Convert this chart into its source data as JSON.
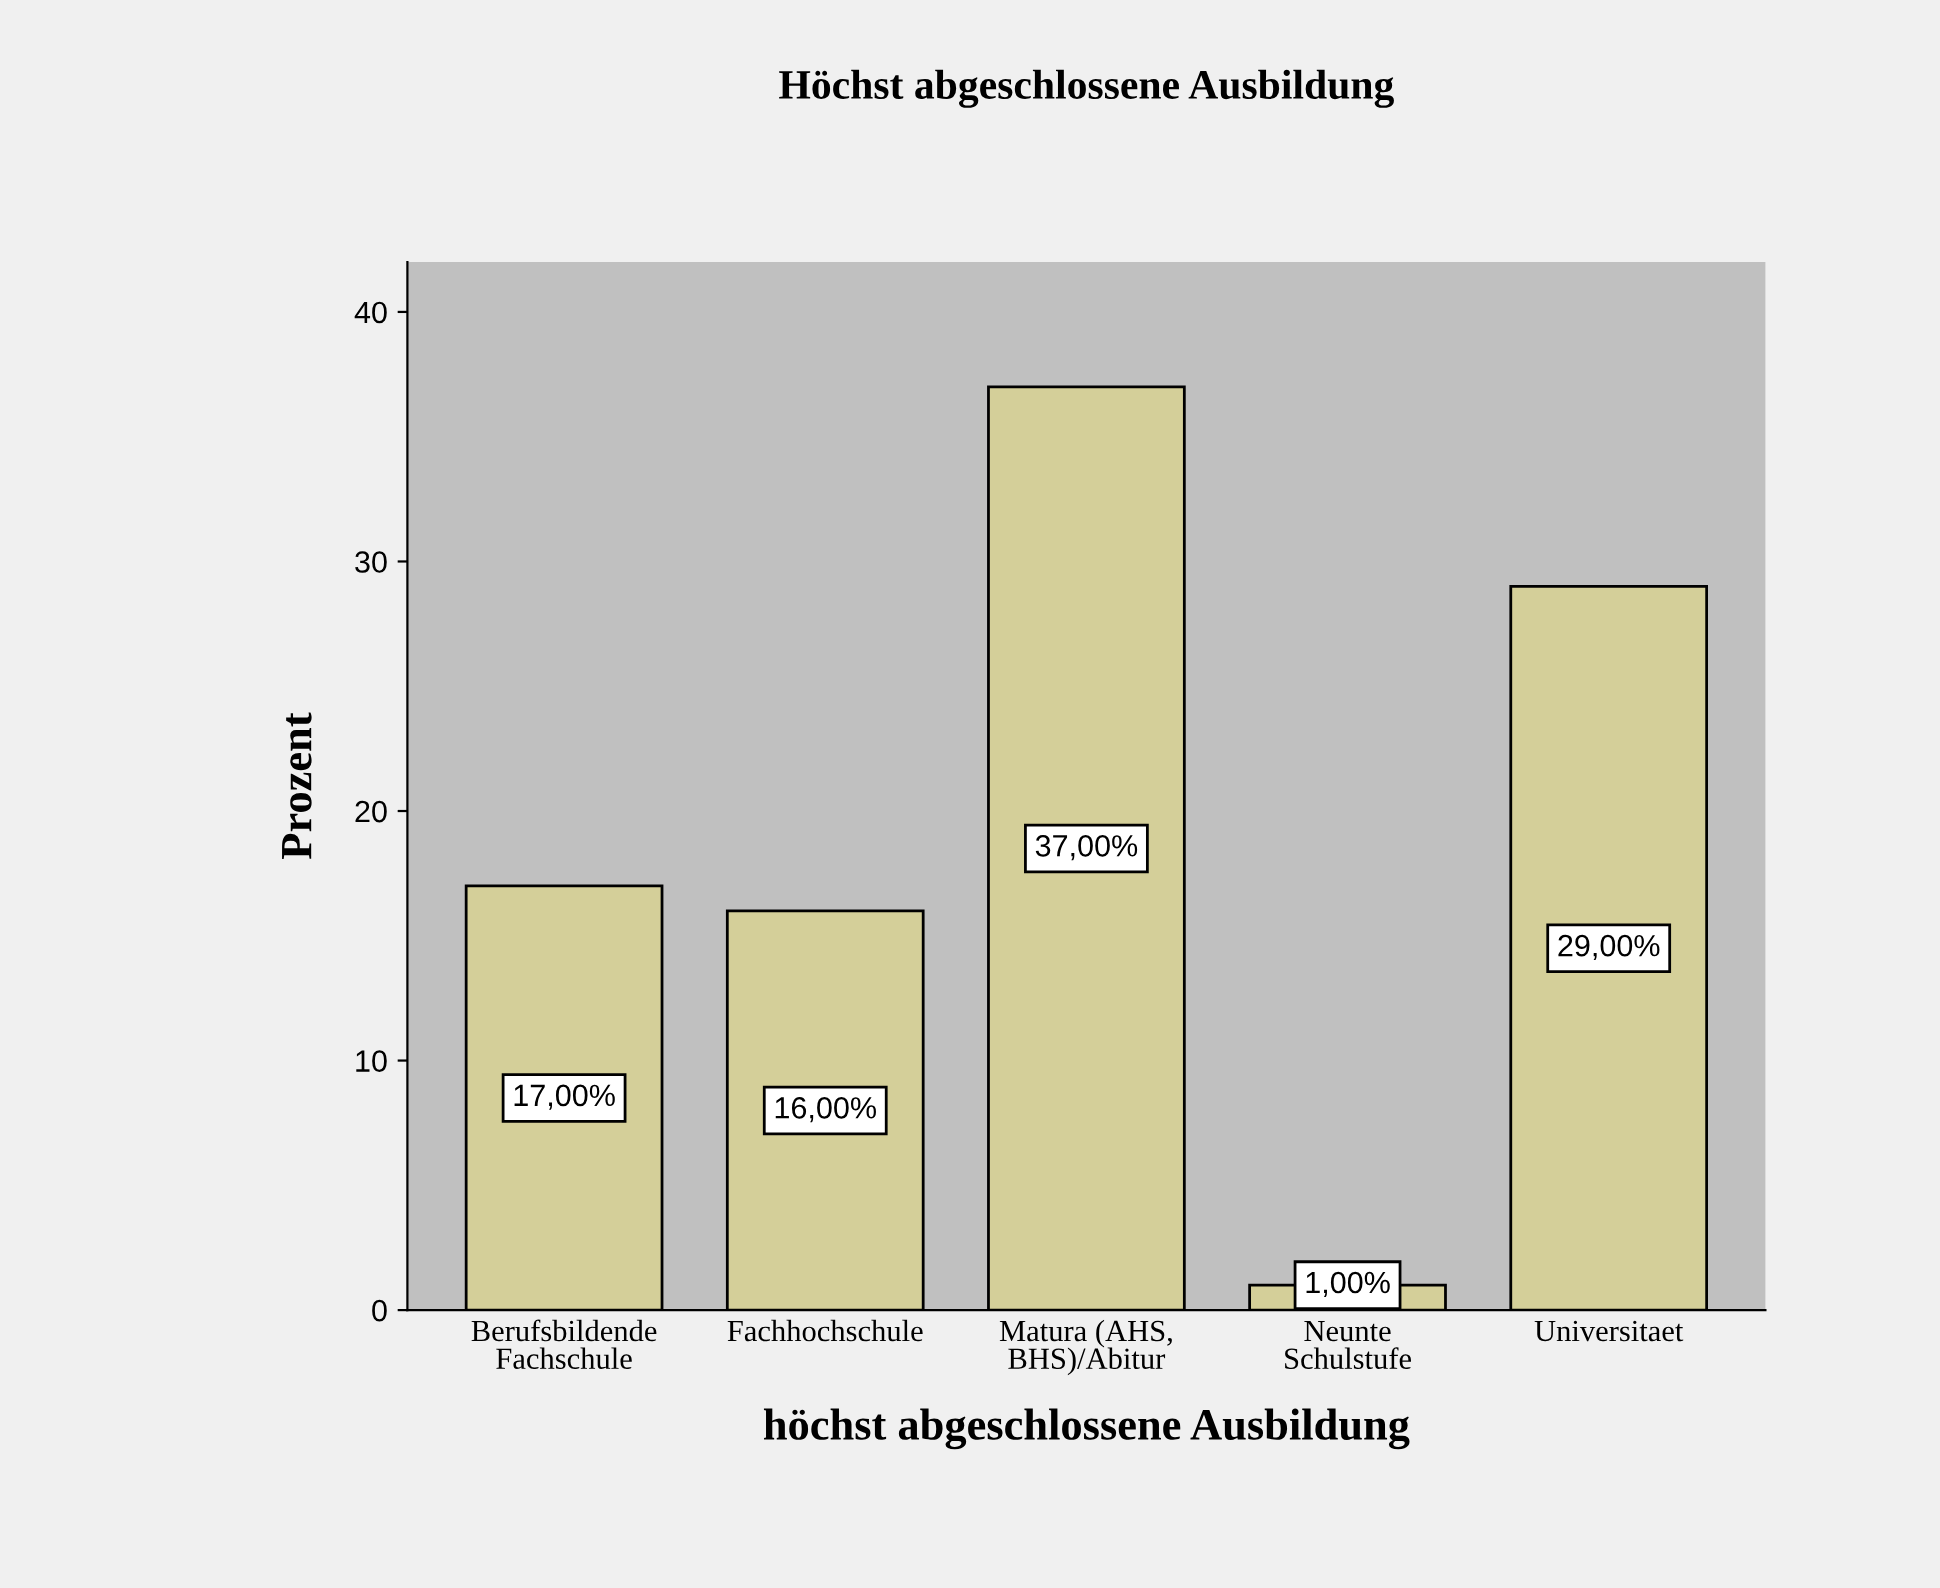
{
  "chart_data": {
    "type": "bar",
    "title": "Höchst abgeschlossene Ausbildung",
    "xlabel": "höchst abgeschlossene Ausbildung",
    "ylabel": "Prozent",
    "categories": [
      "Berufsbildende\nFachschule",
      "Fachhochschule",
      "Matura (AHS,\nBHS)/Abitur",
      "Neunte\nSchulstufe",
      "Universitaet"
    ],
    "values": [
      17,
      16,
      37,
      1,
      29
    ],
    "value_labels": [
      "17,00%",
      "16,00%",
      "37,00%",
      "1,00%",
      "29,00%"
    ],
    "color": "#d4cf99",
    "ylim": [
      0,
      42
    ],
    "yticks": [
      0,
      10,
      20,
      30,
      40
    ],
    "grid": false,
    "legend": false
  }
}
